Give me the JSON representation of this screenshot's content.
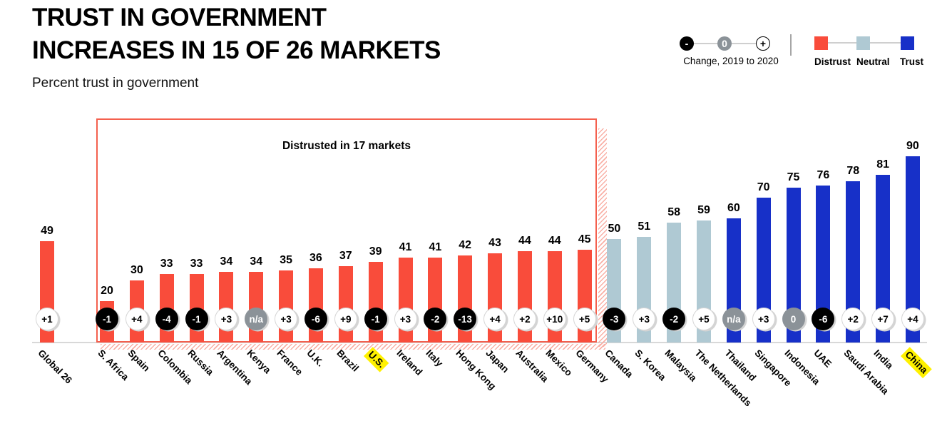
{
  "header": {
    "title_line1": "TRUST IN GOVERNMENT",
    "title_line2": "INCREASES IN 15 OF 26 MARKETS",
    "subtitle": "Percent trust in government"
  },
  "legend": {
    "change": {
      "label": "Change, 2019 to 2020",
      "minus": "-",
      "zero": "0",
      "plus": "+"
    },
    "categories": [
      {
        "key": "distrust",
        "label": "Distrust",
        "color": "#F94C3B"
      },
      {
        "key": "neutral",
        "label": "Neutral",
        "color": "#AFC9D3"
      },
      {
        "key": "trust",
        "label": "Trust",
        "color": "#1730C8"
      }
    ]
  },
  "annotation": {
    "label": "Distrusted in 17 markets"
  },
  "colors": {
    "distrust": "#F94C3B",
    "neutral": "#AFC9D3",
    "trust": "#1730C8",
    "badge_negative_bg": "#000000",
    "badge_positive_bg": "#FFFFFF",
    "badge_na_bg": "#8B9298",
    "box_border": "#F4604E",
    "axis_line": "#D8D8D8",
    "highlight": "#FFF100"
  },
  "chart_data": {
    "type": "bar",
    "title": "TRUST IN GOVERNMENT INCREASES IN 15 OF 26 MARKETS",
    "subtitle": "Percent trust in government",
    "ylabel": "Percent trust in government",
    "ylim": [
      0,
      100
    ],
    "grid": false,
    "legend_position": "top-right",
    "annotation": "Distrusted in 17 markets",
    "bars": [
      {
        "label": "Global 26",
        "value": 49,
        "change": "+1",
        "change_type": "positive",
        "segment": "distrust",
        "highlight": false
      },
      {
        "label": "S. Africa",
        "value": 20,
        "change": "-1",
        "change_type": "negative",
        "segment": "distrust",
        "highlight": false
      },
      {
        "label": "Spain",
        "value": 30,
        "change": "+4",
        "change_type": "positive",
        "segment": "distrust",
        "highlight": false
      },
      {
        "label": "Colombia",
        "value": 33,
        "change": "-4",
        "change_type": "negative",
        "segment": "distrust",
        "highlight": false
      },
      {
        "label": "Russia",
        "value": 33,
        "change": "-1",
        "change_type": "negative",
        "segment": "distrust",
        "highlight": false
      },
      {
        "label": "Argentina",
        "value": 34,
        "change": "+3",
        "change_type": "positive",
        "segment": "distrust",
        "highlight": false
      },
      {
        "label": "Kenya",
        "value": 34,
        "change": "n/a",
        "change_type": "na",
        "segment": "distrust",
        "highlight": false
      },
      {
        "label": "France",
        "value": 35,
        "change": "+3",
        "change_type": "positive",
        "segment": "distrust",
        "highlight": false
      },
      {
        "label": "U.K.",
        "value": 36,
        "change": "-6",
        "change_type": "negative",
        "segment": "distrust",
        "highlight": false
      },
      {
        "label": "Brazil",
        "value": 37,
        "change": "+9",
        "change_type": "positive",
        "segment": "distrust",
        "highlight": false
      },
      {
        "label": "U.S.",
        "value": 39,
        "change": "-1",
        "change_type": "negative",
        "segment": "distrust",
        "highlight": true
      },
      {
        "label": "Ireland",
        "value": 41,
        "change": "+3",
        "change_type": "positive",
        "segment": "distrust",
        "highlight": false
      },
      {
        "label": "Italy",
        "value": 41,
        "change": "-2",
        "change_type": "negative",
        "segment": "distrust",
        "highlight": false
      },
      {
        "label": "Hong Kong",
        "value": 42,
        "change": "-13",
        "change_type": "negative",
        "segment": "distrust",
        "highlight": false
      },
      {
        "label": "Japan",
        "value": 43,
        "change": "+4",
        "change_type": "positive",
        "segment": "distrust",
        "highlight": false
      },
      {
        "label": "Australia",
        "value": 44,
        "change": "+2",
        "change_type": "positive",
        "segment": "distrust",
        "highlight": false
      },
      {
        "label": "Mexico",
        "value": 44,
        "change": "+10",
        "change_type": "positive",
        "segment": "distrust",
        "highlight": false
      },
      {
        "label": "Germany",
        "value": 45,
        "change": "+5",
        "change_type": "positive",
        "segment": "distrust",
        "highlight": false
      },
      {
        "label": "Canada",
        "value": 50,
        "change": "-3",
        "change_type": "negative",
        "segment": "neutral",
        "highlight": false
      },
      {
        "label": "S. Korea",
        "value": 51,
        "change": "+3",
        "change_type": "positive",
        "segment": "neutral",
        "highlight": false
      },
      {
        "label": "Malaysia",
        "value": 58,
        "change": "-2",
        "change_type": "negative",
        "segment": "neutral",
        "highlight": false
      },
      {
        "label": "The Netherlands",
        "value": 59,
        "change": "+5",
        "change_type": "positive",
        "segment": "neutral",
        "highlight": false
      },
      {
        "label": "Thailand",
        "value": 60,
        "change": "n/a",
        "change_type": "na",
        "segment": "trust",
        "highlight": false
      },
      {
        "label": "Singapore",
        "value": 70,
        "change": "+3",
        "change_type": "positive",
        "segment": "trust",
        "highlight": false
      },
      {
        "label": "Indonesia",
        "value": 75,
        "change": "0",
        "change_type": "zero",
        "segment": "trust",
        "highlight": false
      },
      {
        "label": "UAE",
        "value": 76,
        "change": "-6",
        "change_type": "negative",
        "segment": "trust",
        "highlight": false
      },
      {
        "label": "Saudi Arabia",
        "value": 78,
        "change": "+2",
        "change_type": "positive",
        "segment": "trust",
        "highlight": false
      },
      {
        "label": "India",
        "value": 81,
        "change": "+7",
        "change_type": "positive",
        "segment": "trust",
        "highlight": false
      },
      {
        "label": "China",
        "value": 90,
        "change": "+4",
        "change_type": "positive",
        "segment": "trust",
        "highlight": true
      }
    ]
  }
}
